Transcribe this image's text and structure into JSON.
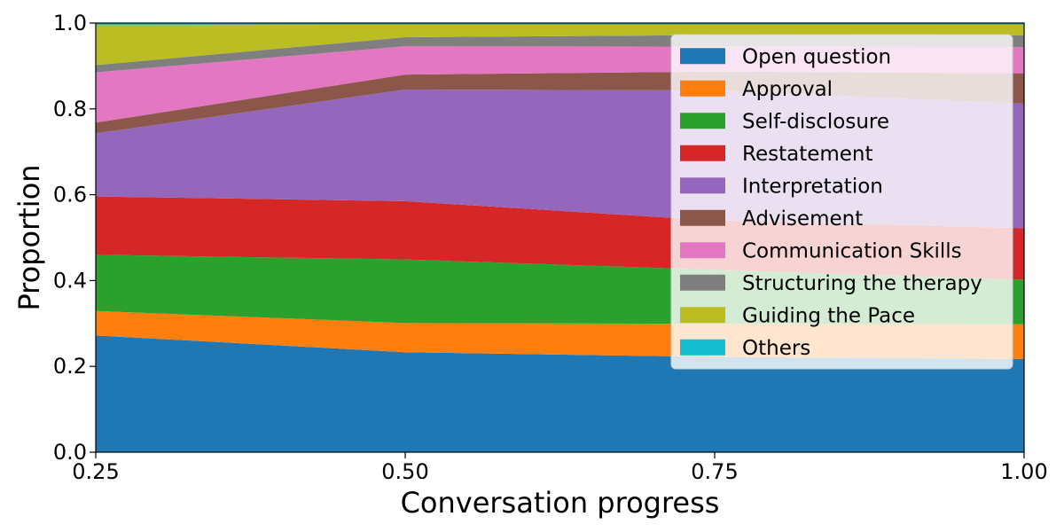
{
  "chart_data": {
    "type": "area",
    "stacked": true,
    "xlabel": "Conversation progress",
    "ylabel": "Proportion",
    "x": [
      0.25,
      0.5,
      0.75,
      1.0
    ],
    "xticks": [
      "0.25",
      "0.50",
      "0.75",
      "1.00"
    ],
    "yticks": [
      "0.0",
      "0.2",
      "0.4",
      "0.6",
      "0.8",
      "1.0"
    ],
    "xlim": [
      0.25,
      1.0
    ],
    "ylim": [
      0,
      1
    ],
    "grid": false,
    "legend_position": "upper-right",
    "series": [
      {
        "name": "Open question",
        "color": "#1f77b4",
        "values": [
          0.272,
          0.233,
          0.222,
          0.217
        ]
      },
      {
        "name": "Approval",
        "color": "#ff7f0e",
        "values": [
          0.057,
          0.068,
          0.077,
          0.081
        ]
      },
      {
        "name": "Self-disclosure",
        "color": "#2ca02c",
        "values": [
          0.131,
          0.148,
          0.126,
          0.104
        ]
      },
      {
        "name": "Restatement",
        "color": "#d62728",
        "values": [
          0.136,
          0.136,
          0.115,
          0.12
        ]
      },
      {
        "name": "Interpretation",
        "color": "#9467bd",
        "values": [
          0.147,
          0.26,
          0.303,
          0.29
        ]
      },
      {
        "name": "Advisement",
        "color": "#8c564b",
        "values": [
          0.025,
          0.035,
          0.044,
          0.071
        ]
      },
      {
        "name": "Communication Skills",
        "color": "#e377c2",
        "values": [
          0.117,
          0.066,
          0.058,
          0.061
        ]
      },
      {
        "name": "Structuring the therapy",
        "color": "#7f7f7f",
        "values": [
          0.017,
          0.021,
          0.027,
          0.027
        ]
      },
      {
        "name": "Guiding the Pace",
        "color": "#bcbd22",
        "values": [
          0.093,
          0.029,
          0.024,
          0.025
        ]
      },
      {
        "name": "Others",
        "color": "#17becf",
        "values": [
          0.005,
          0.004,
          0.004,
          0.004
        ]
      }
    ]
  }
}
